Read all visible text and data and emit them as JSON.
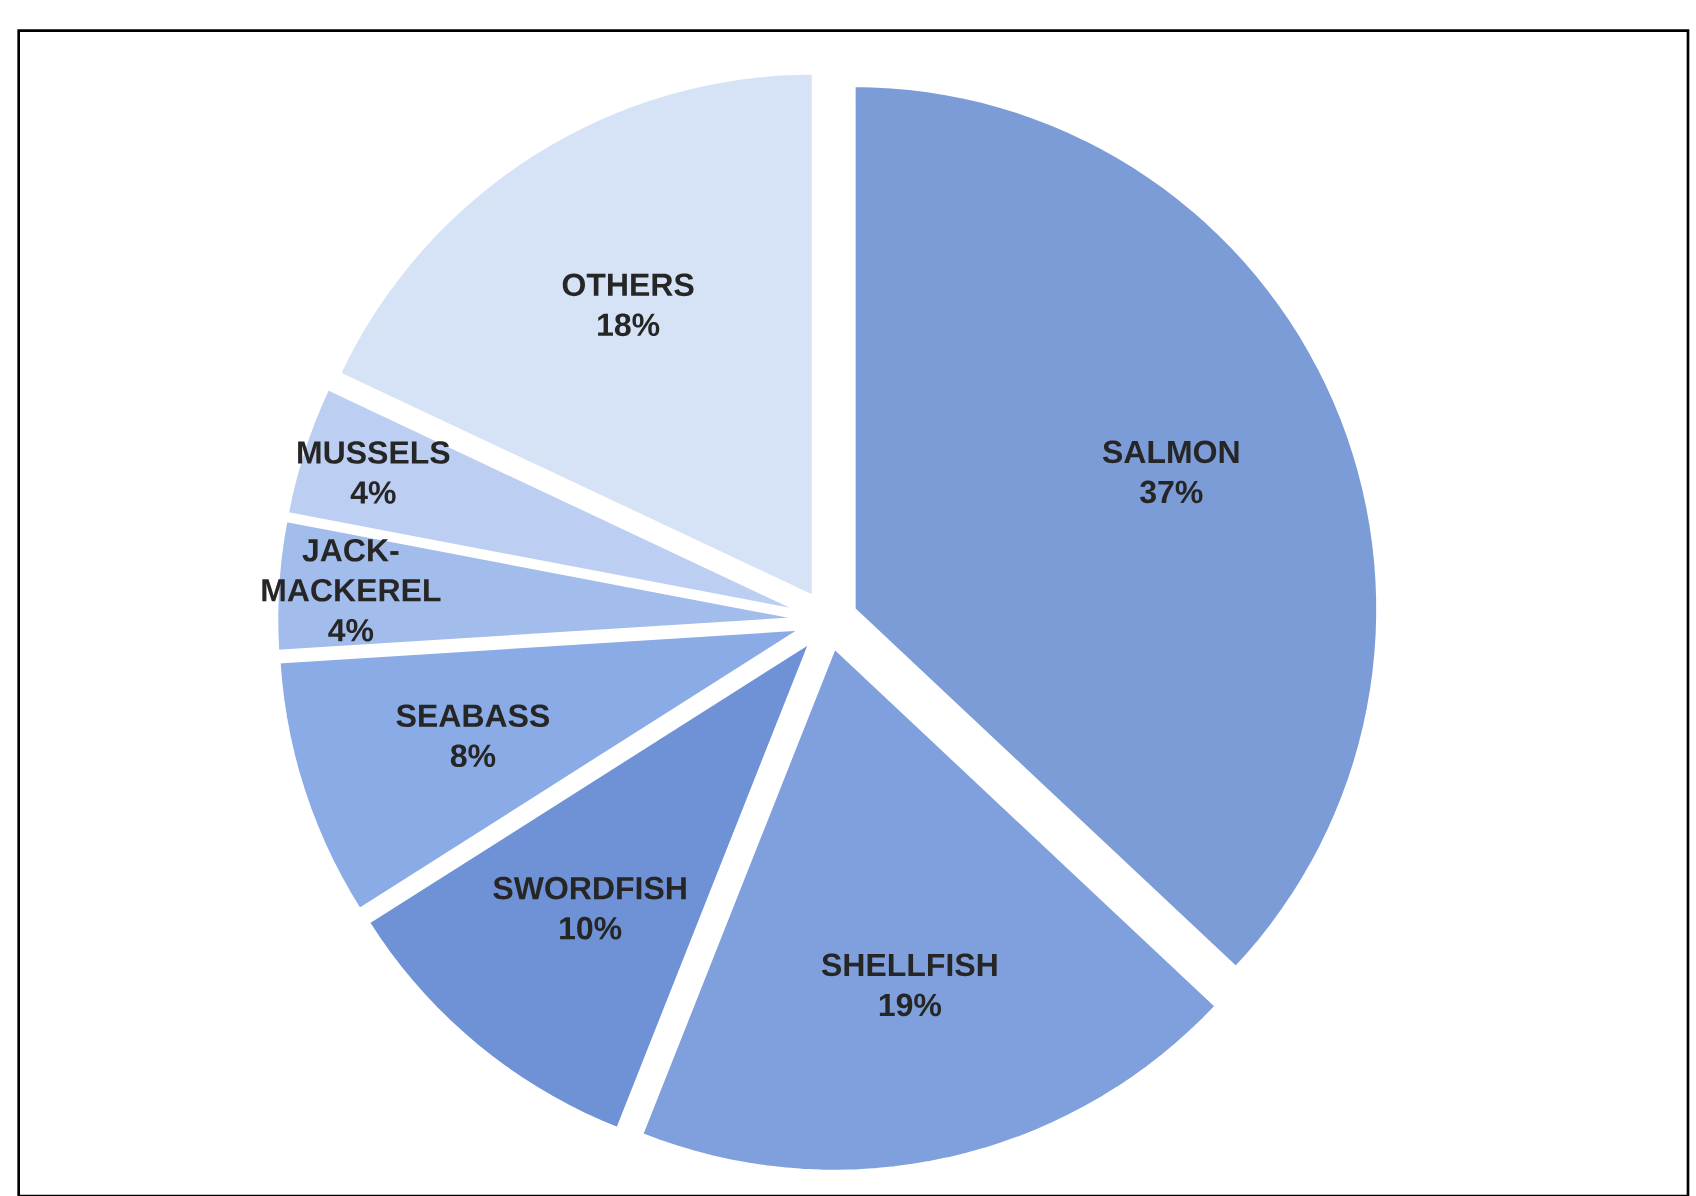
{
  "chart_data": {
    "type": "pie",
    "categories": [
      "SALMON",
      "SHELLFISH",
      "SWORDFISH",
      "SEABASS",
      "JACK-MACKEREL",
      "MUSSELS",
      "OTHERS"
    ],
    "values": [
      37,
      19,
      10,
      8,
      4,
      4,
      18
    ],
    "value_labels": [
      "37%",
      "19%",
      "10%",
      "8%",
      "4%",
      "4%",
      "18%"
    ],
    "colors": [
      "#7c9cd8",
      "#7fa0dc",
      "#6f92d6",
      "#8aabe6",
      "#a2bcec",
      "#bccff2",
      "#d6e2f6"
    ]
  }
}
